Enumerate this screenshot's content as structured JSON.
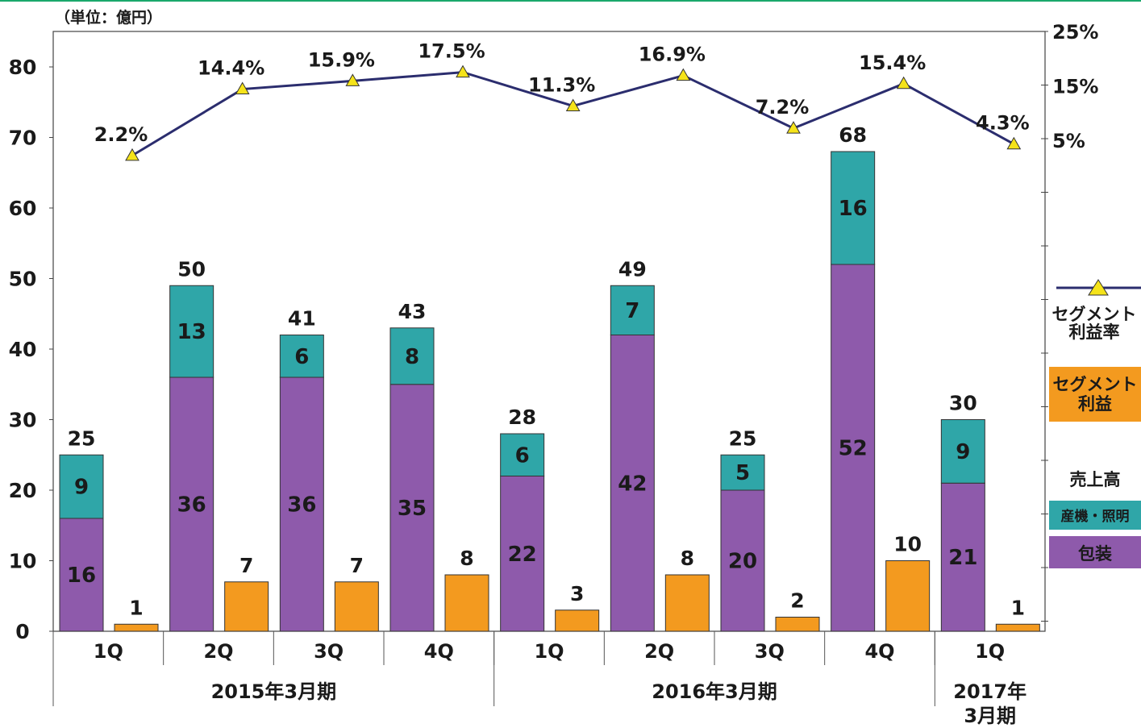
{
  "chart_data": {
    "type": "bar",
    "unit_label": "（単位：億円）",
    "left_axis": {
      "min": 0,
      "max": 80,
      "ticks": [
        "0",
        "10",
        "20",
        "30",
        "40",
        "50",
        "60",
        "70",
        "80"
      ]
    },
    "right_axis": {
      "ticks": [
        "25%",
        "15%",
        "5%"
      ],
      "tick_values": [
        25,
        15,
        5
      ]
    },
    "quarters": [
      "1Q",
      "2Q",
      "3Q",
      "4Q",
      "1Q",
      "2Q",
      "3Q",
      "4Q",
      "1Q"
    ],
    "periods": [
      {
        "label": "2015年3月期",
        "count": 4
      },
      {
        "label": "2016年3月期",
        "count": 4
      },
      {
        "label": "2017年\n3月期",
        "count": 1
      }
    ],
    "series": [
      {
        "name": "包装",
        "values": [
          16,
          36,
          36,
          35,
          22,
          42,
          20,
          52,
          21
        ],
        "color": "#8e5aab",
        "kind": "stacked"
      },
      {
        "name": "産機・照明",
        "values": [
          9,
          13,
          6,
          8,
          6,
          7,
          5,
          16,
          9
        ],
        "color": "#2fa6a8",
        "kind": "stacked"
      },
      {
        "name": "売上高",
        "values": [
          25,
          50,
          41,
          43,
          28,
          49,
          25,
          68,
          30
        ],
        "kind": "total"
      },
      {
        "name": "セグメント利益",
        "values": [
          1,
          7,
          7,
          8,
          3,
          8,
          2,
          10,
          1
        ],
        "color": "#f39a1f",
        "kind": "bar"
      },
      {
        "name": "セグメント利益率",
        "values": [
          2.2,
          14.4,
          15.9,
          17.5,
          11.3,
          16.9,
          7.2,
          15.4,
          4.3
        ],
        "labels": [
          "2.2%",
          "14.4%",
          "15.9%",
          "17.5%",
          "11.3%",
          "16.9%",
          "7.2%",
          "15.4%",
          "4.3%"
        ],
        "color": "#2b2d6e",
        "marker_color": "#f5e31a",
        "kind": "line"
      }
    ],
    "legend": {
      "rate_label": "セグメント\n利益率",
      "profit_label": "セグメント\n利益",
      "sales_label": "売上高",
      "industrial_label": "産機・照明",
      "packaging_label": "包装"
    }
  }
}
